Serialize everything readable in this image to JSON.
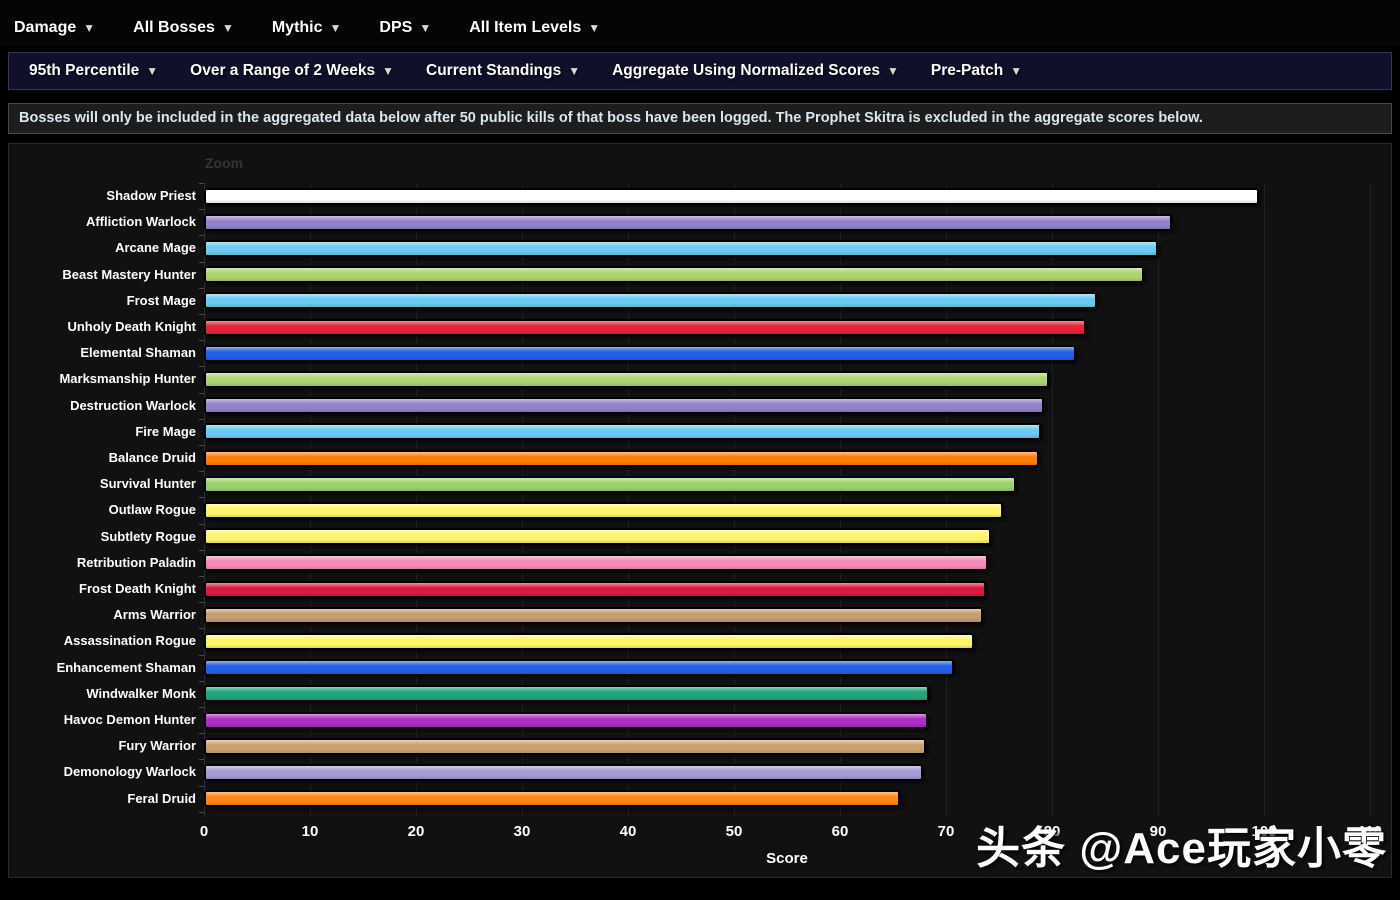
{
  "nav": {
    "items": [
      {
        "label": "Damage"
      },
      {
        "label": "All Bosses"
      },
      {
        "label": "Mythic"
      },
      {
        "label": "DPS"
      },
      {
        "label": "All Item Levels"
      }
    ]
  },
  "filters": {
    "items": [
      {
        "label": "95th Percentile"
      },
      {
        "label": "Over a Range of 2 Weeks"
      },
      {
        "label": "Current Standings"
      },
      {
        "label": "Aggregate Using Normalized Scores"
      },
      {
        "label": "Pre-Patch"
      }
    ]
  },
  "notice": {
    "text": "Bosses will only be included in the aggregated data below after 50 public kills of that boss have been logged. The Prophet Skitra is excluded in the aggregate scores below."
  },
  "chart": {
    "zoom_label": "Zoom"
  },
  "watermark": {
    "text": "头条 @Ace玩家小零"
  },
  "chart_data": {
    "type": "bar",
    "orientation": "horizontal",
    "xlabel": "Score",
    "xlim": [
      0,
      110
    ],
    "xticks": [
      0,
      10,
      20,
      30,
      40,
      50,
      60,
      70,
      80,
      90,
      100,
      110
    ],
    "grid": true,
    "legend": false,
    "categories": [
      "Shadow Priest",
      "Affliction Warlock",
      "Arcane Mage",
      "Beast Mastery Hunter",
      "Frost Mage",
      "Unholy Death Knight",
      "Elemental Shaman",
      "Marksmanship Hunter",
      "Destruction Warlock",
      "Fire Mage",
      "Balance Druid",
      "Survival Hunter",
      "Outlaw Rogue",
      "Subtlety Rogue",
      "Retribution Paladin",
      "Frost Death Knight",
      "Arms Warrior",
      "Assassination Rogue",
      "Enhancement Shaman",
      "Windwalker Monk",
      "Havoc Demon Hunter",
      "Fury Warrior",
      "Demonology Warlock",
      "Feral Druid"
    ],
    "values": [
      99.5,
      91.3,
      90.0,
      88.7,
      84.2,
      83.2,
      82.3,
      79.7,
      79.2,
      79.0,
      78.8,
      76.6,
      75.4,
      74.2,
      74.0,
      73.8,
      73.5,
      72.6,
      70.8,
      68.4,
      68.3,
      68.1,
      67.8,
      65.7
    ],
    "colors": [
      "#ffffff",
      "#9482c9",
      "#69ccf0",
      "#abd473",
      "#69ccf0",
      "#e22638",
      "#2360e8",
      "#abd473",
      "#9482c9",
      "#69ccf0",
      "#ff7d0a",
      "#9bd36b",
      "#fff569",
      "#fff569",
      "#f58cba",
      "#da1b41",
      "#c79c6e",
      "#fff569",
      "#2360e8",
      "#1fa77c",
      "#b02cc9",
      "#cda26d",
      "#a79bd8",
      "#ff8812"
    ]
  }
}
